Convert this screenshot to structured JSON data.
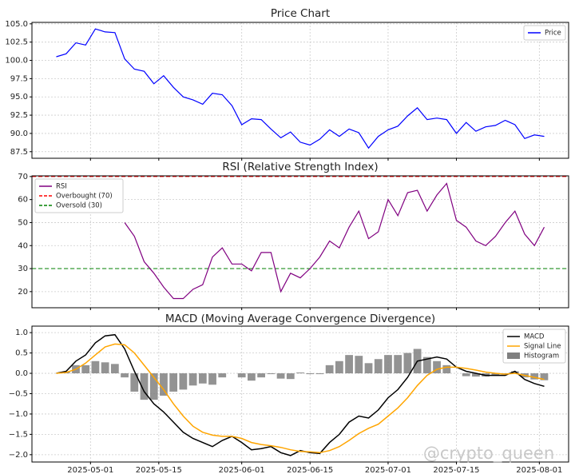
{
  "chart_data": [
    {
      "type": "line",
      "title": "Price Chart",
      "x": [
        "2025-04-24",
        "2025-04-26",
        "2025-04-28",
        "2025-04-30",
        "2025-05-02",
        "2025-05-04",
        "2025-05-06",
        "2025-05-08",
        "2025-05-10",
        "2025-05-12",
        "2025-05-14",
        "2025-05-16",
        "2025-05-18",
        "2025-05-20",
        "2025-05-22",
        "2025-05-24",
        "2025-05-26",
        "2025-05-28",
        "2025-05-30",
        "2025-06-01",
        "2025-06-03",
        "2025-06-05",
        "2025-06-07",
        "2025-06-09",
        "2025-06-11",
        "2025-06-13",
        "2025-06-15",
        "2025-06-17",
        "2025-06-19",
        "2025-06-21",
        "2025-06-23",
        "2025-06-25",
        "2025-06-27",
        "2025-06-29",
        "2025-07-01",
        "2025-07-03",
        "2025-07-05",
        "2025-07-07",
        "2025-07-09",
        "2025-07-11",
        "2025-07-13",
        "2025-07-15",
        "2025-07-17",
        "2025-07-19",
        "2025-07-21",
        "2025-07-23",
        "2025-07-25",
        "2025-07-27",
        "2025-07-29",
        "2025-07-31",
        "2025-08-02"
      ],
      "series": [
        {
          "name": "Price",
          "color": "blue",
          "values": [
            100.5,
            100.9,
            102.4,
            102.1,
            104.3,
            103.9,
            103.8,
            100.2,
            98.8,
            98.5,
            96.8,
            97.9,
            96.3,
            95.0,
            94.6,
            94.0,
            95.5,
            95.3,
            93.8,
            91.2,
            92.0,
            91.9,
            90.6,
            89.4,
            90.2,
            88.8,
            88.4,
            89.2,
            90.5,
            89.6,
            90.6,
            90.1,
            88.0,
            89.6,
            90.5,
            91.0,
            92.4,
            93.5,
            91.9,
            92.1,
            91.9,
            90.0,
            91.5,
            90.3,
            90.9,
            91.1,
            91.8,
            91.2,
            89.3,
            89.8,
            89.6
          ]
        }
      ],
      "xlim": [
        "2025-04-19",
        "2025-08-07"
      ],
      "xticks": [
        "2025-05-01",
        "2025-05-15",
        "2025-06-01",
        "2025-06-15",
        "2025-07-01",
        "2025-07-15",
        "2025-08-01"
      ],
      "ylim": [
        86.6,
        105.2
      ],
      "yticks": [
        87.5,
        {
          "value": 90,
          "label": "90.0"
        },
        92.5,
        {
          "value": 95,
          "label": "95.0"
        },
        97.5,
        {
          "value": 100,
          "label": "100.0"
        },
        102.5,
        {
          "value": 105,
          "label": "105.0"
        }
      ],
      "grid": true,
      "legend": "upper right"
    },
    {
      "type": "line",
      "title": "RSI (Relative Strength Index)",
      "x": [
        "2025-04-24",
        "2025-04-26",
        "2025-04-28",
        "2025-04-30",
        "2025-05-02",
        "2025-05-04",
        "2025-05-06",
        "2025-05-08",
        "2025-05-10",
        "2025-05-12",
        "2025-05-14",
        "2025-05-16",
        "2025-05-18",
        "2025-05-20",
        "2025-05-22",
        "2025-05-24",
        "2025-05-26",
        "2025-05-28",
        "2025-05-30",
        "2025-06-01",
        "2025-06-03",
        "2025-06-05",
        "2025-06-07",
        "2025-06-09",
        "2025-06-11",
        "2025-06-13",
        "2025-06-15",
        "2025-06-17",
        "2025-06-19",
        "2025-06-21",
        "2025-06-23",
        "2025-06-25",
        "2025-06-27",
        "2025-06-29",
        "2025-07-01",
        "2025-07-03",
        "2025-07-05",
        "2025-07-07",
        "2025-07-09",
        "2025-07-11",
        "2025-07-13",
        "2025-07-15",
        "2025-07-17",
        "2025-07-19",
        "2025-07-21",
        "2025-07-23",
        "2025-07-25",
        "2025-07-27",
        "2025-07-29",
        "2025-07-31",
        "2025-08-02"
      ],
      "series": [
        {
          "name": "RSI",
          "color": "purple",
          "values": [
            null,
            null,
            null,
            null,
            null,
            null,
            null,
            50,
            44,
            33,
            28,
            22,
            17,
            17,
            21,
            23,
            35,
            39,
            32,
            32,
            29,
            37,
            37,
            20,
            28,
            26,
            30,
            35,
            42,
            39,
            48,
            55,
            43,
            46,
            60,
            53,
            63,
            64,
            55,
            62,
            67,
            51,
            48,
            42,
            40,
            44,
            50,
            55,
            45,
            40,
            48
          ]
        }
      ],
      "hlines": [
        {
          "name": "Overbought (70)",
          "value": 70,
          "color": "red"
        },
        {
          "name": "Oversold (30)",
          "value": 30,
          "color": "green"
        }
      ],
      "xlim": [
        "2025-04-19",
        "2025-08-07"
      ],
      "xticks": [
        "2025-05-01",
        "2025-05-15",
        "2025-06-01",
        "2025-06-15",
        "2025-07-01",
        "2025-07-15",
        "2025-08-01"
      ],
      "ylim": [
        13,
        70.3
      ],
      "yticks": [
        20,
        30,
        40,
        50,
        60,
        70
      ],
      "grid": true,
      "legend": "upper left"
    },
    {
      "type": "line",
      "title": "MACD (Moving Average Convergence Divergence)",
      "x": [
        "2025-04-24",
        "2025-04-26",
        "2025-04-28",
        "2025-04-30",
        "2025-05-02",
        "2025-05-04",
        "2025-05-06",
        "2025-05-08",
        "2025-05-10",
        "2025-05-12",
        "2025-05-14",
        "2025-05-16",
        "2025-05-18",
        "2025-05-20",
        "2025-05-22",
        "2025-05-24",
        "2025-05-26",
        "2025-05-28",
        "2025-05-30",
        "2025-06-01",
        "2025-06-03",
        "2025-06-05",
        "2025-06-07",
        "2025-06-09",
        "2025-06-11",
        "2025-06-13",
        "2025-06-15",
        "2025-06-17",
        "2025-06-19",
        "2025-06-21",
        "2025-06-23",
        "2025-06-25",
        "2025-06-27",
        "2025-06-29",
        "2025-07-01",
        "2025-07-03",
        "2025-07-05",
        "2025-07-07",
        "2025-07-09",
        "2025-07-11",
        "2025-07-13",
        "2025-07-15",
        "2025-07-17",
        "2025-07-19",
        "2025-07-21",
        "2025-07-23",
        "2025-07-25",
        "2025-07-27",
        "2025-07-29",
        "2025-07-31",
        "2025-08-02"
      ],
      "series": [
        {
          "name": "MACD",
          "color": "black",
          "values": [
            0,
            0.05,
            0.3,
            0.45,
            0.75,
            0.92,
            0.95,
            0.6,
            0.05,
            -0.45,
            -0.75,
            -0.95,
            -1.2,
            -1.45,
            -1.6,
            -1.7,
            -1.8,
            -1.65,
            -1.55,
            -1.7,
            -1.88,
            -1.85,
            -1.8,
            -1.95,
            -2.02,
            -1.9,
            -1.95,
            -1.97,
            -1.7,
            -1.5,
            -1.2,
            -1.05,
            -1.1,
            -0.9,
            -0.6,
            -0.4,
            -0.1,
            0.3,
            0.35,
            0.4,
            0.35,
            0.15,
            0.05,
            0,
            -0.05,
            -0.05,
            -0.05,
            0.05,
            -0.15,
            -0.25,
            -0.32
          ]
        },
        {
          "name": "Signal Line",
          "color": "orange",
          "values": [
            0,
            0.02,
            0.1,
            0.25,
            0.45,
            0.65,
            0.72,
            0.7,
            0.5,
            0.2,
            -0.1,
            -0.4,
            -0.75,
            -1.05,
            -1.3,
            -1.45,
            -1.52,
            -1.55,
            -1.55,
            -1.6,
            -1.7,
            -1.75,
            -1.78,
            -1.82,
            -1.88,
            -1.92,
            -1.93,
            -1.95,
            -1.9,
            -1.8,
            -1.65,
            -1.48,
            -1.35,
            -1.25,
            -1.05,
            -0.85,
            -0.6,
            -0.3,
            -0.05,
            0.1,
            0.15,
            0.15,
            0.12,
            0.08,
            0.03,
            0,
            -0.02,
            0,
            -0.05,
            -0.1,
            -0.15
          ]
        },
        {
          "name": "Histogram",
          "color": "gray",
          "style": "bar",
          "values": [
            0,
            0.03,
            0.2,
            0.2,
            0.3,
            0.27,
            0.23,
            -0.1,
            -0.45,
            -0.65,
            -0.65,
            -0.55,
            -0.45,
            -0.4,
            -0.3,
            -0.25,
            -0.28,
            -0.1,
            0,
            -0.1,
            -0.18,
            -0.1,
            -0.02,
            -0.13,
            -0.14,
            0.02,
            -0.02,
            -0.02,
            0.2,
            0.3,
            0.45,
            0.43,
            0.25,
            0.35,
            0.45,
            0.45,
            0.5,
            0.6,
            0.4,
            0.3,
            0.2,
            0,
            -0.07,
            -0.08,
            -0.08,
            -0.05,
            -0.03,
            0.05,
            -0.1,
            -0.15,
            -0.17
          ]
        }
      ],
      "xlim": [
        "2025-04-19",
        "2025-08-07"
      ],
      "xticks": [
        "2025-05-01",
        "2025-05-15",
        "2025-06-01",
        "2025-06-15",
        "2025-07-01",
        "2025-07-15",
        "2025-08-01"
      ],
      "ylim": [
        -2.18,
        1.16
      ],
      "yticks": [
        {
          "value": -2,
          "label": "−2.0"
        },
        {
          "value": -1.5,
          "label": "−1.5"
        },
        {
          "value": -1,
          "label": "−1.0"
        },
        {
          "value": -0.5,
          "label": "−0.5"
        },
        {
          "value": 0,
          "label": "0.0"
        },
        0.5,
        {
          "value": 1,
          "label": "1.0"
        }
      ],
      "grid": true,
      "legend": "upper right"
    }
  ],
  "watermark": "@crypto_queen"
}
